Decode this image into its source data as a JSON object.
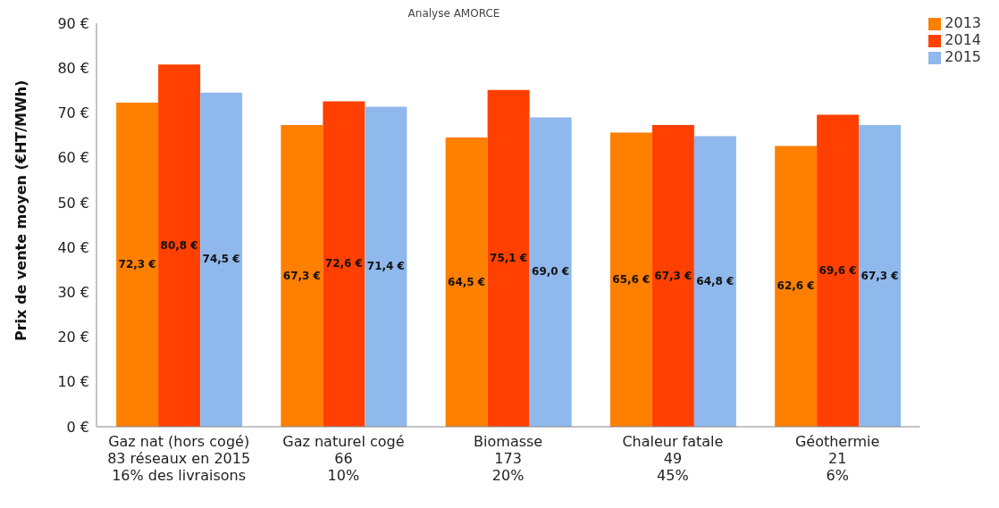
{
  "chart_data": {
    "type": "bar",
    "title": "Analyse AMORCE",
    "ylabel": "Prix de vente moyen (€HT/MWh)",
    "categories": [
      "Gaz nat (hors cogé)\n83 réseaux en 2015\n16% des livraisons",
      "Gaz naturel cogé\n66\n10%",
      "Biomasse\n173\n20%",
      "Chaleur fatale\n49\n45%",
      "Géothermie\n21\n6%"
    ],
    "series": [
      {
        "name": "2013",
        "color": "#ff7f00",
        "values": [
          72.3,
          67.3,
          64.5,
          65.6,
          62.6
        ],
        "value_labels": [
          "72,3 €",
          "67,3 €",
          "64,5 €",
          "65,6 €",
          "62,6 €"
        ]
      },
      {
        "name": "2014",
        "color": "#ff4000",
        "values": [
          80.8,
          72.6,
          75.1,
          67.3,
          69.6
        ],
        "value_labels": [
          "80,8 €",
          "72,6 €",
          "75,1 €",
          "67,3 €",
          "69,6 €"
        ]
      },
      {
        "name": "2015",
        "color": "#8fb8ec",
        "values": [
          74.5,
          71.4,
          69.0,
          64.8,
          67.3
        ],
        "value_labels": [
          "74,5  €",
          "71,4  €",
          "69,0  €",
          "64,8  €",
          "67,3  €"
        ]
      }
    ],
    "ylim": [
      0,
      90
    ],
    "yticks": [
      {
        "value": 0,
        "label": "0 €"
      },
      {
        "value": 10,
        "label": "10 €"
      },
      {
        "value": 20,
        "label": "20 €"
      },
      {
        "value": 30,
        "label": "30 €"
      },
      {
        "value": 40,
        "label": "40 €"
      },
      {
        "value": 50,
        "label": "50 €"
      },
      {
        "value": 60,
        "label": "60 €"
      },
      {
        "value": 70,
        "label": "70 €"
      },
      {
        "value": 80,
        "label": "80 €"
      },
      {
        "value": 90,
        "label": "90 €"
      }
    ],
    "grid": false,
    "legend": "top right"
  }
}
